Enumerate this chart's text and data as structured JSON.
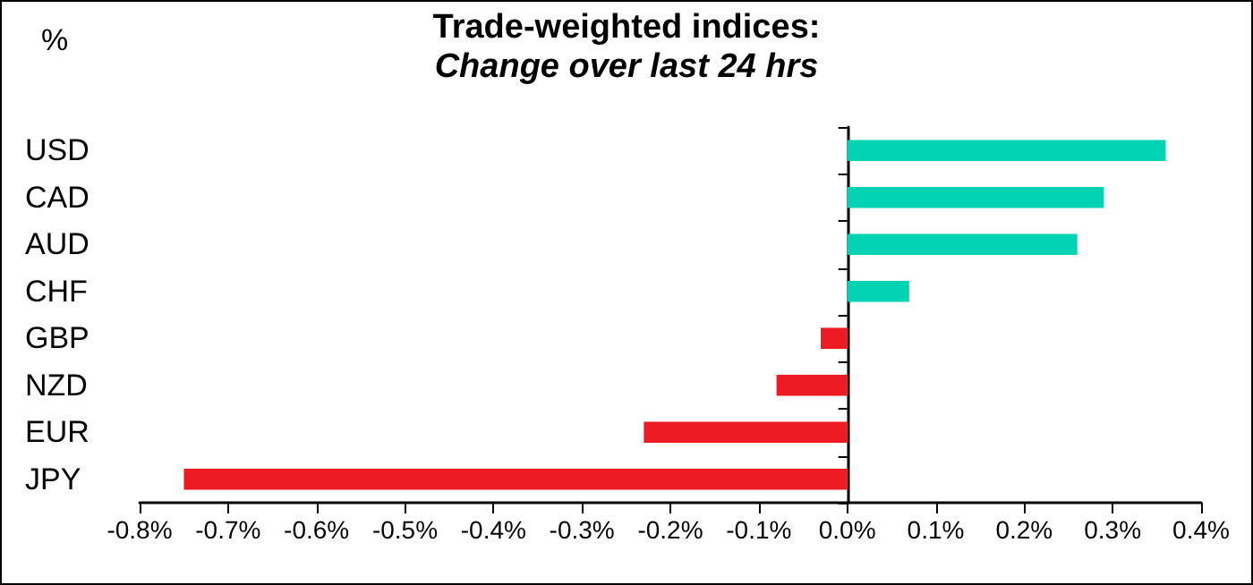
{
  "chart_data": {
    "type": "bar",
    "orientation": "horizontal",
    "title": "Trade-weighted indices:",
    "subtitle": "Change over last 24 hrs",
    "annotations": [
      "%"
    ],
    "categories": [
      "USD",
      "CAD",
      "AUD",
      "CHF",
      "GBP",
      "NZD",
      "EUR",
      "JPY"
    ],
    "values": [
      0.36,
      0.29,
      0.26,
      0.07,
      -0.03,
      -0.08,
      -0.23,
      -0.75
    ],
    "colors": [
      "#00d2b4",
      "#00d2b4",
      "#00d2b4",
      "#00d2b4",
      "#ed1c24",
      "#ed1c24",
      "#ed1c24",
      "#ed1c24"
    ],
    "xlim": [
      -0.8,
      0.4
    ],
    "xticks": [
      {
        "value": -0.8,
        "label": "-0.8%"
      },
      {
        "value": -0.7,
        "label": "-0.7%"
      },
      {
        "value": -0.6,
        "label": "-0.6%"
      },
      {
        "value": -0.5,
        "label": "-0.5%"
      },
      {
        "value": -0.4,
        "label": "-0.4%"
      },
      {
        "value": -0.3,
        "label": "-0.3%"
      },
      {
        "value": -0.2,
        "label": "-0.2%"
      },
      {
        "value": -0.1,
        "label": "-0.1%"
      },
      {
        "value": 0,
        "label": "0.0%"
      },
      {
        "value": 0.1,
        "label": "0.1%"
      },
      {
        "value": 0.2,
        "label": "0.2%"
      },
      {
        "value": 0.3,
        "label": "0.3%"
      },
      {
        "value": 0.4,
        "label": "0.4%"
      }
    ]
  }
}
